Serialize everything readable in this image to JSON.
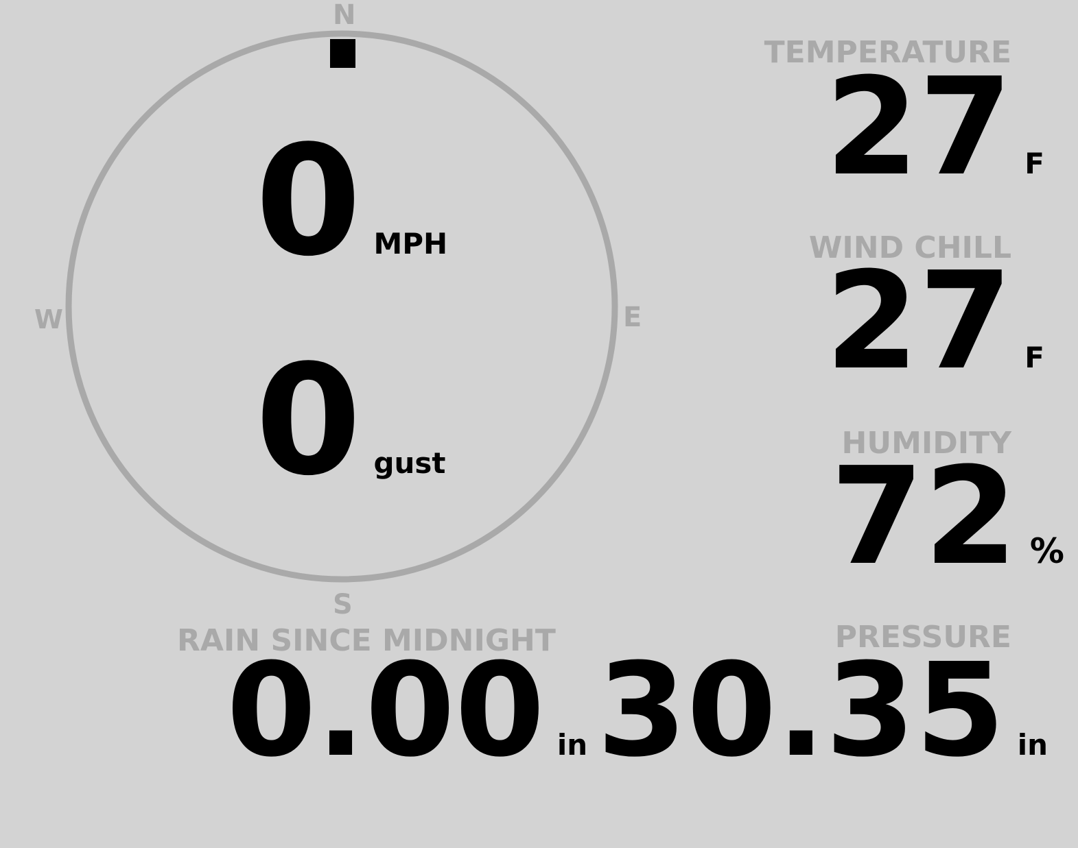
{
  "compass": {
    "n": "N",
    "s": "S",
    "e": "E",
    "w": "W",
    "direction_degrees": 0
  },
  "wind": {
    "speed": "0",
    "speed_unit": "MPH",
    "gust": "0",
    "gust_unit": "gust"
  },
  "temperature": {
    "label": "TEMPERATURE",
    "value": "27",
    "unit": "F"
  },
  "wind_chill": {
    "label": "WIND CHILL",
    "value": "27",
    "unit": "F"
  },
  "humidity": {
    "label": "HUMIDITY",
    "value": "72",
    "unit": "%"
  },
  "rain": {
    "label": "RAIN SINCE MIDNIGHT",
    "value": "0.00",
    "unit": "in"
  },
  "pressure": {
    "label": "PRESSURE",
    "value": "30.35",
    "unit": "in"
  },
  "colors": {
    "background": "#d3d3d3",
    "muted": "#a9a9a9",
    "text": "#000000"
  }
}
